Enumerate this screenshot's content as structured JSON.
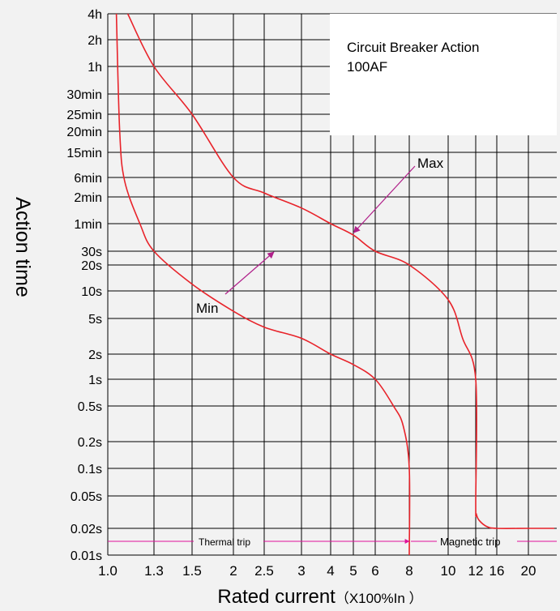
{
  "chart_data": {
    "type": "line",
    "title_lines": [
      "Circuit Breaker Action",
      "100AF"
    ],
    "xlabel": "Rated current",
    "xlabel_suffix": "（X100%In ）",
    "ylabel": "Action time",
    "x_scale": "log",
    "y_scale": "custom ticked log-like",
    "grid": true,
    "x_ticks": [
      {
        "label": "1.0",
        "value": 1.0
      },
      {
        "label": "1.3",
        "value": 1.3
      },
      {
        "label": "1.5",
        "value": 1.5
      },
      {
        "label": "2",
        "value": 2
      },
      {
        "label": "2.5",
        "value": 2.5
      },
      {
        "label": "3",
        "value": 3
      },
      {
        "label": "4",
        "value": 4
      },
      {
        "label": "5",
        "value": 5
      },
      {
        "label": "6",
        "value": 6
      },
      {
        "label": "8",
        "value": 8
      },
      {
        "label": "10",
        "value": 10
      },
      {
        "label": "12",
        "value": 12
      },
      {
        "label": "16",
        "value": 16
      },
      {
        "label": "20",
        "value": 20
      }
    ],
    "y_ticks": [
      {
        "label": "4h",
        "seconds": 14400
      },
      {
        "label": "2h",
        "seconds": 7200
      },
      {
        "label": "1h",
        "seconds": 3600
      },
      {
        "label": "30min",
        "seconds": 1800
      },
      {
        "label": "25min",
        "seconds": 1500
      },
      {
        "label": "20min",
        "seconds": 1200
      },
      {
        "label": "15min",
        "seconds": 900
      },
      {
        "label": "6min",
        "seconds": 360
      },
      {
        "label": "2min",
        "seconds": 120
      },
      {
        "label": "1min",
        "seconds": 60
      },
      {
        "label": "30s",
        "seconds": 30
      },
      {
        "label": "20s",
        "seconds": 20
      },
      {
        "label": "10s",
        "seconds": 10
      },
      {
        "label": "5s",
        "seconds": 5
      },
      {
        "label": "2s",
        "seconds": 2
      },
      {
        "label": "1s",
        "seconds": 1
      },
      {
        "label": "0.5s",
        "seconds": 0.5
      },
      {
        "label": "0.2s",
        "seconds": 0.2
      },
      {
        "label": "0.1s",
        "seconds": 0.1
      },
      {
        "label": "0.05s",
        "seconds": 0.05
      },
      {
        "label": "0.02s",
        "seconds": 0.02
      },
      {
        "label": "0.01s",
        "seconds": 0.01
      }
    ],
    "series": [
      {
        "name": "Max",
        "color": "#e8232a",
        "x": [
          1.12,
          1.3,
          1.5,
          2,
          2.5,
          3,
          4,
          5,
          6,
          8,
          10,
          11,
          12,
          12,
          12.1,
          12.6,
          14,
          16,
          20,
          24
        ],
        "y": [
          14400,
          3600,
          1500,
          360,
          150,
          90,
          60,
          45,
          30,
          20,
          8,
          3,
          1,
          0.04,
          0.03,
          0.025,
          0.021,
          0.02,
          0.02,
          0.02
        ]
      },
      {
        "name": "Min",
        "color": "#e8232a",
        "x": [
          1.05,
          1.07,
          1.1,
          1.2,
          1.3,
          1.5,
          2,
          2.5,
          3,
          4,
          5,
          6,
          7,
          7.6,
          8,
          8
        ],
        "y": [
          14400,
          1200,
          300,
          60,
          30,
          12,
          6,
          4,
          3,
          2,
          1.5,
          1,
          0.5,
          0.3,
          0.1,
          0.01
        ]
      }
    ],
    "annotations": [
      {
        "text": "Max",
        "points_to": {
          "x": 4.9,
          "y": 45
        }
      },
      {
        "text": "Min",
        "points_to": {
          "x": 2.6,
          "y": 30
        }
      },
      {
        "text": "Thermal trip",
        "range": [
          1.0,
          8
        ]
      },
      {
        "text": "Magnetic trip",
        "range": [
          8,
          24
        ]
      }
    ],
    "colors": {
      "curve": "#e8232a",
      "arrow": "#b0208a",
      "trip_line": "#e0109a",
      "grid": "#000000",
      "background": "#f2f2f2"
    }
  }
}
